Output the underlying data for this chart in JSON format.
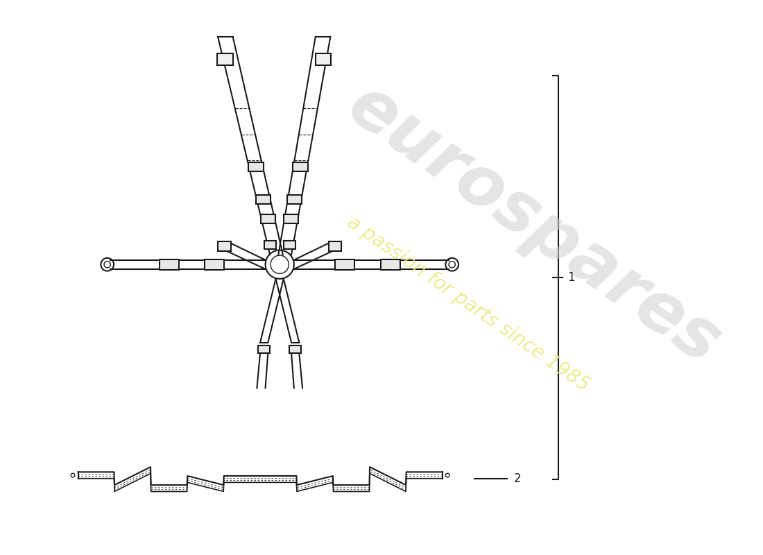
{
  "background_color": "#ffffff",
  "line_color": "#1a1a1a",
  "watermark_text1": "eurospares",
  "watermark_text2": "a passion for parts since 1985",
  "watermark_color1": "#d0d0d0",
  "watermark_color2": "#e8e880",
  "label1": "1",
  "label2": "2",
  "figsize": [
    11.0,
    8.0
  ],
  "dpi": 100
}
